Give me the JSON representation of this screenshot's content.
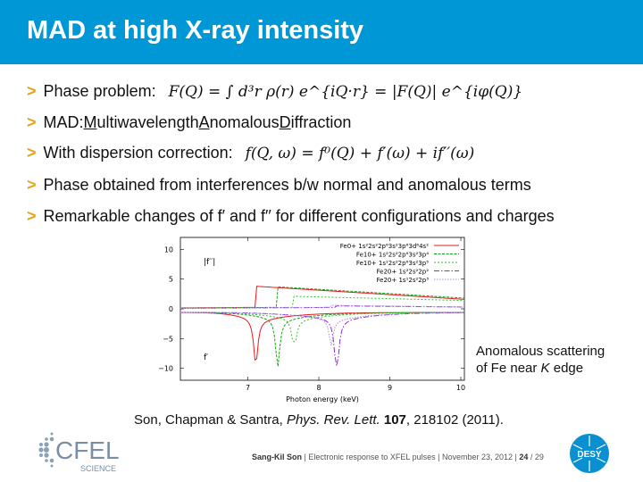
{
  "slide": {
    "title": "MAD at high X-ray intensity",
    "bullets": {
      "b1_text": "Phase problem:",
      "b1_math": "F(Q) = ∫ d³r ρ(r) e^{iQ·r} = |F(Q)| e^{iφ(Q)}",
      "b2_pre": "MAD: ",
      "b2_m": "M",
      "b2_ulti": "ultiwavelength ",
      "b2_a": "A",
      "b2_nom": "nomalous ",
      "b2_d": "D",
      "b2_iff": "iffraction",
      "b3_text": "With dispersion correction:",
      "b3_math": "f(Q, ω) = f⁰(Q) + f′(ω) + if′′(ω)",
      "b4_text": "Phase obtained from interferences b/w normal and anomalous terms",
      "b5_text": "Remarkable changes of f′ and f′′ for different configurations and charges"
    },
    "annotation_line1": "Anomalous scattering",
    "annotation_line2_pre": "of Fe near ",
    "annotation_line2_k": "K",
    "annotation_line2_post": " edge",
    "citation_pre": "Son, Chapman & Santra, ",
    "citation_journal": "Phys. Rev. Lett.",
    "citation_vol": "107",
    "citation_post": ", 218102 (2011).",
    "footer_author": "Sang-Kil Son",
    "footer_talk": "Electronic response to XFEL pulses",
    "footer_date": "November 23, 2012",
    "footer_page": "24",
    "footer_total": "/ 29",
    "logo_text": "CFEL",
    "logo_sub": "SCIENCE",
    "desy_text": "DESY",
    "colors": {
      "header": "#0097d6",
      "arrow": "#e8a317"
    }
  },
  "chart_data": {
    "type": "line",
    "xlabel": "Photon energy (keV)",
    "ylabel": "",
    "xlim": [
      6.05,
      10.05
    ],
    "ylim": [
      -12,
      12
    ],
    "x_ticks": [
      7,
      8,
      9,
      10
    ],
    "y_ticks": [
      10,
      5,
      0,
      -5,
      -10
    ],
    "y_tick_labels": [
      "10",
      "5",
      "0",
      "−5",
      "−10"
    ],
    "label_fpp": "|f′′|",
    "label_fp": "f′",
    "series": [
      {
        "name": "Fe0+ 1s²2s²2p⁶3s²3p⁶3d⁶4s²",
        "color": "#e8191c",
        "edge": 7.11,
        "fpp_above": 3.8,
        "fpp_end": 1.6,
        "fp_min": -8.2
      },
      {
        "name": "Fe10+ 1s²2s²2p⁶3s²3p⁴",
        "color": "#1aa01a",
        "edge": 7.42,
        "fpp_above": 3.7,
        "fpp_end": 1.8,
        "fp_min": -8.5
      },
      {
        "name": "Fe10+ 1s¹2s²2p⁶3s²3p⁵",
        "color": "#30c030",
        "edge": 7.65,
        "fpp_above": 2.1,
        "fpp_end": 1.4,
        "fp_min": -5.5
      },
      {
        "name": "Fe20+ 1s²2s²2p²",
        "color": "#8a2be2",
        "edge": 8.25,
        "fpp_above": 0.5,
        "fpp_end": 0.3,
        "fp_min": -10
      },
      {
        "name": "Fe20+ 1s¹2s²2p³",
        "color": "#b090e0",
        "edge": 8.17,
        "fpp_above": 0.6,
        "fpp_end": 0.3,
        "fp_min": -4.5
      }
    ],
    "legend_placement": "top-right",
    "grid": false
  }
}
